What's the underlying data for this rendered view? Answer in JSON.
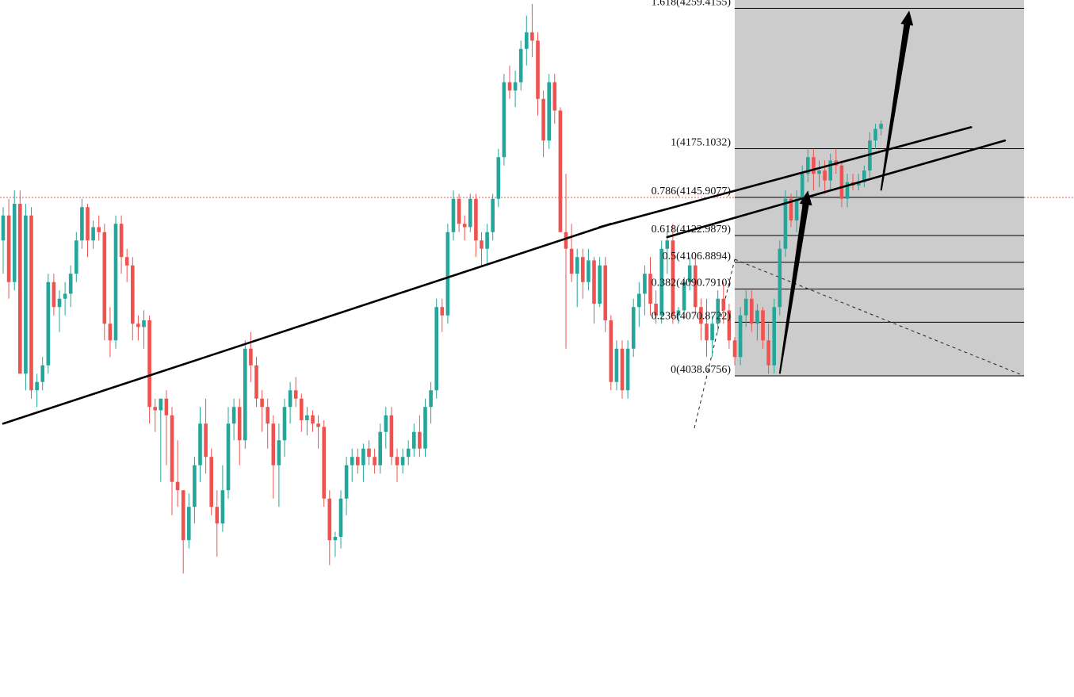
{
  "chart_data": {
    "type": "candlestick",
    "title": "",
    "xlabel": "",
    "ylabel": "",
    "grid": false,
    "legend": "none",
    "colors": {
      "up": "#26a69a",
      "down": "#ef5350",
      "trendline": "#000000",
      "fib_zone": "#cccccc",
      "fib_line": "#000000",
      "current_price_line": "#ef5350"
    },
    "ylim": [
      3950,
      4320
    ],
    "current_price": 4190,
    "candles_ohlc": [
      [
        4120,
        4140,
        4100,
        4135
      ],
      [
        4135,
        4145,
        4085,
        4095
      ],
      [
        4095,
        4150,
        4090,
        4142
      ],
      [
        4142,
        4150,
        4040,
        4040
      ],
      [
        4040,
        4142,
        4030,
        4135
      ],
      [
        4135,
        4140,
        4025,
        4030
      ],
      [
        4030,
        4040,
        4020,
        4035
      ],
      [
        4035,
        4050,
        4030,
        4045
      ],
      [
        4045,
        4100,
        4040,
        4095
      ],
      [
        4095,
        4100,
        4075,
        4080
      ],
      [
        4080,
        4090,
        4065,
        4085
      ],
      [
        4085,
        4095,
        4075,
        4088
      ],
      [
        4088,
        4105,
        4080,
        4100
      ],
      [
        4100,
        4125,
        4095,
        4120
      ],
      [
        4120,
        4145,
        4115,
        4140
      ],
      [
        4140,
        4142,
        4110,
        4120
      ],
      [
        4120,
        4132,
        4115,
        4128
      ],
      [
        4128,
        4135,
        4120,
        4125
      ],
      [
        4125,
        4130,
        4060,
        4070
      ],
      [
        4070,
        4080,
        4050,
        4060
      ],
      [
        4060,
        4135,
        4055,
        4130
      ],
      [
        4130,
        4135,
        4100,
        4110
      ],
      [
        4110,
        4115,
        4095,
        4105
      ],
      [
        4105,
        4110,
        4060,
        4070
      ],
      [
        4070,
        4075,
        4060,
        4068
      ],
      [
        4068,
        4078,
        4055,
        4072
      ],
      [
        4072,
        4075,
        4010,
        4020
      ],
      [
        4020,
        4025,
        4005,
        4018
      ],
      [
        4018,
        4025,
        3975,
        4025
      ],
      [
        4025,
        4030,
        3985,
        4015
      ],
      [
        4015,
        4020,
        3955,
        3975
      ],
      [
        3975,
        4000,
        3960,
        3970
      ],
      [
        3970,
        3970,
        3920,
        3940
      ],
      [
        3940,
        3968,
        3935,
        3960
      ],
      [
        3960,
        3990,
        3950,
        3985
      ],
      [
        3985,
        4020,
        3975,
        4010
      ],
      [
        4010,
        4025,
        3980,
        3990
      ],
      [
        3990,
        3995,
        3955,
        3960
      ],
      [
        3960,
        3970,
        3930,
        3950
      ],
      [
        3950,
        3985,
        3945,
        3970
      ],
      [
        3970,
        4020,
        3965,
        4010
      ],
      [
        4010,
        4025,
        4000,
        4020
      ],
      [
        4020,
        4025,
        3985,
        4000
      ],
      [
        4000,
        4060,
        3995,
        4055
      ],
      [
        4055,
        4065,
        4035,
        4045
      ],
      [
        4045,
        4050,
        4020,
        4025
      ],
      [
        4025,
        4030,
        4005,
        4020
      ],
      [
        4020,
        4025,
        3995,
        4010
      ],
      [
        4010,
        4015,
        3965,
        3985
      ],
      [
        3985,
        4010,
        3960,
        4000
      ],
      [
        4000,
        4025,
        3990,
        4020
      ],
      [
        4020,
        4035,
        4010,
        4030
      ],
      [
        4030,
        4038,
        4020,
        4025
      ],
      [
        4025,
        4028,
        4005,
        4012
      ],
      [
        4012,
        4020,
        4003,
        4015
      ],
      [
        4015,
        4018,
        4005,
        4010
      ],
      [
        4010,
        4015,
        3995,
        4008
      ],
      [
        4008,
        4012,
        3960,
        3965
      ],
      [
        3965,
        3970,
        3925,
        3940
      ],
      [
        3940,
        3945,
        3930,
        3942
      ],
      [
        3942,
        3970,
        3935,
        3965
      ],
      [
        3965,
        3990,
        3955,
        3985
      ],
      [
        3985,
        3995,
        3975,
        3990
      ],
      [
        3990,
        3995,
        3980,
        3985
      ],
      [
        3985,
        3998,
        3975,
        3995
      ],
      [
        3995,
        4000,
        3985,
        3990
      ],
      [
        3990,
        3995,
        3980,
        3985
      ],
      [
        3985,
        4010,
        3980,
        4005
      ],
      [
        4005,
        4020,
        3995,
        4015
      ],
      [
        4015,
        4020,
        3985,
        3990
      ],
      [
        3990,
        3995,
        3975,
        3985
      ],
      [
        3985,
        3995,
        3980,
        3990
      ],
      [
        3990,
        4000,
        3985,
        3995
      ],
      [
        3995,
        4010,
        3990,
        4005
      ],
      [
        4005,
        4015,
        3990,
        3995
      ],
      [
        3995,
        4025,
        3990,
        4020
      ],
      [
        4020,
        4035,
        4010,
        4030
      ],
      [
        4030,
        4085,
        4025,
        4080
      ],
      [
        4080,
        4085,
        4065,
        4075
      ],
      [
        4075,
        4130,
        4070,
        4125
      ],
      [
        4125,
        4150,
        4120,
        4145
      ],
      [
        4145,
        4148,
        4125,
        4130
      ],
      [
        4130,
        4135,
        4120,
        4128
      ],
      [
        4128,
        4148,
        4125,
        4145
      ],
      [
        4145,
        4148,
        4110,
        4120
      ],
      [
        4120,
        4125,
        4105,
        4115
      ],
      [
        4115,
        4130,
        4105,
        4125
      ],
      [
        4125,
        4148,
        4120,
        4145
      ],
      [
        4145,
        4175,
        4140,
        4170
      ],
      [
        4170,
        4220,
        4165,
        4215
      ],
      [
        4215,
        4225,
        4205,
        4210
      ],
      [
        4210,
        4222,
        4200,
        4215
      ],
      [
        4215,
        4240,
        4210,
        4235
      ],
      [
        4235,
        4255,
        4225,
        4245
      ],
      [
        4245,
        4262,
        4230,
        4240
      ],
      [
        4240,
        4245,
        4195,
        4205
      ],
      [
        4205,
        4210,
        4170,
        4180
      ],
      [
        4180,
        4220,
        4175,
        4215
      ],
      [
        4215,
        4220,
        4190,
        4198
      ],
      [
        4198,
        4200,
        4125,
        4125
      ],
      [
        4125,
        4160,
        4055,
        4115
      ],
      [
        4115,
        4130,
        4095,
        4100
      ],
      [
        4100,
        4115,
        4080,
        4110
      ],
      [
        4110,
        4115,
        4085,
        4095
      ],
      [
        4095,
        4115,
        4090,
        4108
      ],
      [
        4108,
        4110,
        4070,
        4082
      ],
      [
        4082,
        4110,
        4080,
        4105
      ],
      [
        4105,
        4110,
        4065,
        4072
      ],
      [
        4072,
        4075,
        4030,
        4035
      ],
      [
        4035,
        4060,
        4030,
        4055
      ],
      [
        4055,
        4060,
        4025,
        4030
      ],
      [
        4030,
        4060,
        4025,
        4055
      ],
      [
        4055,
        4085,
        4050,
        4080
      ],
      [
        4080,
        4095,
        4068,
        4088
      ],
      [
        4088,
        4105,
        4075,
        4100
      ],
      [
        4100,
        4110,
        4075,
        4082
      ],
      [
        4082,
        4090,
        4070,
        4075
      ],
      [
        4075,
        4120,
        4070,
        4115
      ],
      [
        4115,
        4125,
        4100,
        4120
      ],
      [
        4120,
        4130,
        4070,
        4075
      ],
      [
        4075,
        4080,
        4070,
        4078
      ],
      [
        4078,
        4098,
        4075,
        4095
      ],
      [
        4095,
        4110,
        4090,
        4105
      ],
      [
        4105,
        4110,
        4075,
        4080
      ],
      [
        4080,
        4085,
        4060,
        4070
      ],
      [
        4070,
        4085,
        4050,
        4060
      ],
      [
        4060,
        4075,
        4050,
        4070
      ],
      [
        4070,
        4090,
        4065,
        4085
      ],
      [
        4085,
        4095,
        4070,
        4078
      ],
      [
        4078,
        4082,
        4055,
        4060
      ],
      [
        4060,
        4062,
        4045,
        4050
      ],
      [
        4050,
        4080,
        4045,
        4075
      ],
      [
        4075,
        4090,
        4068,
        4085
      ],
      [
        4085,
        4090,
        4065,
        4070
      ],
      [
        4070,
        4082,
        4060,
        4078
      ],
      [
        4078,
        4080,
        4055,
        4060
      ],
      [
        4060,
        4070,
        4040,
        4045
      ],
      [
        4045,
        4085,
        4040,
        4080
      ],
      [
        4080,
        4120,
        4075,
        4115
      ],
      [
        4115,
        4150,
        4110,
        4145
      ],
      [
        4145,
        4148,
        4128,
        4132
      ],
      [
        4132,
        4150,
        4125,
        4145
      ],
      [
        4145,
        4165,
        4140,
        4160
      ],
      [
        4160,
        4175,
        4155,
        4170
      ],
      [
        4170,
        4175,
        4150,
        4160
      ],
      [
        4160,
        4168,
        4152,
        4162
      ],
      [
        4162,
        4168,
        4148,
        4156
      ],
      [
        4156,
        4172,
        4150,
        4168
      ],
      [
        4168,
        4175,
        4160,
        4165
      ],
      [
        4165,
        4168,
        4140,
        4145
      ],
      [
        4145,
        4160,
        4140,
        4155
      ],
      [
        4155,
        4160,
        4150,
        4153
      ],
      [
        4153,
        4160,
        4150,
        4155
      ],
      [
        4155,
        4165,
        4152,
        4162
      ],
      [
        4162,
        4185,
        4158,
        4180
      ],
      [
        4180,
        4190,
        4175,
        4187
      ],
      [
        4187,
        4192,
        4183,
        4190
      ]
    ],
    "fibonacci": {
      "levels": [
        {
          "label": "1.618(4259.4155)",
          "ratio": 1.618,
          "price": 4259.4155
        },
        {
          "label": "1(4175.1032)",
          "ratio": 1,
          "price": 4175.1032
        },
        {
          "label": "0.786(4145.9077)",
          "ratio": 0.786,
          "price": 4145.9077
        },
        {
          "label": "0.618(4122.9879)",
          "ratio": 0.618,
          "price": 4122.9879
        },
        {
          "label": "0.5(4106.8894)",
          "ratio": 0.5,
          "price": 4106.8894
        },
        {
          "label": "0.382(4090.7910)",
          "ratio": 0.382,
          "price": 4090.791
        },
        {
          "label": "0.236(4070.8722)",
          "ratio": 0.236,
          "price": 4070.8722
        },
        {
          "label": "0(4038.6756)",
          "ratio": 0,
          "price": 4038.6756
        }
      ]
    },
    "trendlines": [
      {
        "name": "long-trendline",
        "from": [
          0,
          4010
        ],
        "to": [
          108,
          4130
        ]
      },
      {
        "name": "upper-channel-line",
        "from": [
          106,
          4128
        ],
        "to": [
          172,
          4188
        ]
      },
      {
        "name": "lower-channel-line",
        "from": [
          118,
          4122
        ],
        "to": [
          178,
          4180
        ]
      }
    ],
    "arrows": [
      {
        "name": "first-rally-arrow",
        "from": [
          138,
          4040
        ],
        "to": [
          143,
          4150
        ]
      },
      {
        "name": "projected-rally-arrow",
        "from": [
          156,
          4150
        ],
        "to": [
          161,
          4258
        ]
      }
    ]
  }
}
